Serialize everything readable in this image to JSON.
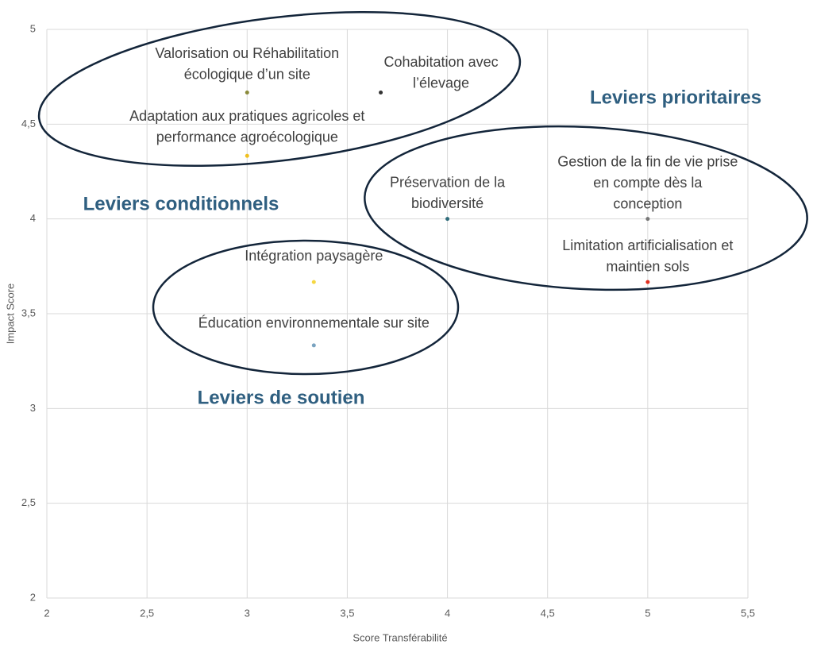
{
  "chart_data": {
    "type": "scatter",
    "xlabel": "Score Transférabilité",
    "ylabel": "Impact Score",
    "xlim": [
      2,
      5.5
    ],
    "ylim": [
      2,
      5
    ],
    "xticks": [
      2,
      {
        "value": 2.5,
        "label": "2,5"
      },
      3,
      {
        "value": 3.5,
        "label": "3,5"
      },
      4,
      {
        "value": 4.5,
        "label": "4,5"
      },
      5,
      {
        "value": 5.5,
        "label": "5,5"
      }
    ],
    "yticks": [
      2,
      {
        "value": 2.5,
        "label": "2,5"
      },
      3,
      {
        "value": 3.5,
        "label": "3,5"
      },
      4,
      {
        "value": 4.5,
        "label": "4,5"
      },
      5
    ],
    "grid": true,
    "x": [
      3,
      3.667,
      3,
      4,
      5,
      5,
      3.333,
      3.333
    ],
    "y": [
      4.667,
      4.667,
      4.333,
      4,
      4,
      3.667,
      3.667,
      3.333
    ],
    "colors": [
      "#8a8a3a",
      "#333333",
      "#f0c020",
      "#2e6b7a",
      "#777777",
      "#e03020",
      "#f5d742",
      "#7aa3c0"
    ],
    "point_labels": [
      [
        "Valorisation ou Réhabilitation",
        "écologique d’un site"
      ],
      [
        "Cohabitation avec",
        "l’élevage"
      ],
      [
        "Adaptation aux pratiques agricoles et",
        "performance agroécologique"
      ],
      [
        "Préservation de la",
        "biodiversité"
      ],
      [
        "Gestion de la fin de vie prise",
        "en compte dès la",
        "conception"
      ],
      [
        "Limitation artificialisation et",
        "maintien sols"
      ],
      [
        "Intégration paysagère"
      ],
      [
        "Éducation environnementale sur site"
      ]
    ],
    "annotations": [
      "Leviers prioritaires",
      "Leviers conditionnels",
      "Leviers de soutien"
    ]
  }
}
